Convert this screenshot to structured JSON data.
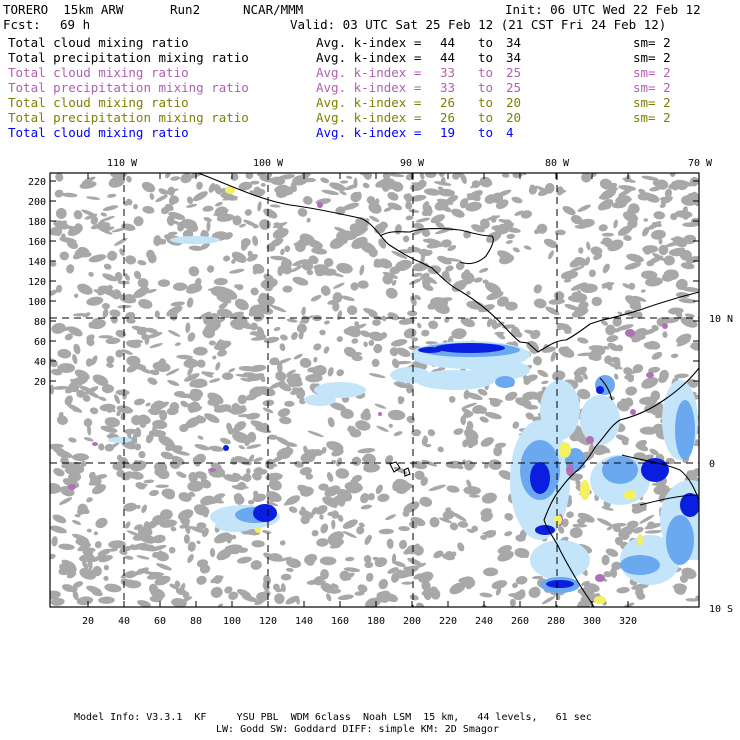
{
  "header": {
    "model": "TORERO  15km ARW",
    "run": "Run2",
    "org": "NCAR/MMM",
    "init": "Init: 06 UTC Wed 22 Feb 12",
    "fcst_label": "Fcst:",
    "fcst_value": "69 h",
    "valid": "Valid: 03 UTC Sat 25 Feb 12 (21 CST Fri 24 Feb 12)"
  },
  "fields": [
    {
      "name": "Total cloud mixing ratio",
      "avg": "Avg. k-index =",
      "from": "44",
      "to_word": "to",
      "to": "34",
      "sm": "sm= 2",
      "color": "#000000"
    },
    {
      "name": "Total precipitation mixing ratio",
      "avg": "Avg. k-index =",
      "from": "44",
      "to_word": "to",
      "to": "34",
      "sm": "sm= 2",
      "color": "#000000"
    },
    {
      "name": "Total cloud mixing ratio",
      "avg": "Avg. k-index =",
      "from": "33",
      "to_word": "to",
      "to": "25",
      "sm": "sm= 2",
      "color": "#b060b0"
    },
    {
      "name": "Total precipitation mixing ratio",
      "avg": "Avg. k-index =",
      "from": "33",
      "to_word": "to",
      "to": "25",
      "sm": "sm= 2",
      "color": "#b060b0"
    },
    {
      "name": "Total cloud mixing ratio",
      "avg": "Avg. k-index =",
      "from": "26",
      "to_word": "to",
      "to": "20",
      "sm": "sm= 2",
      "color": "#808000"
    },
    {
      "name": "Total precipitation mixing ratio",
      "avg": "Avg. k-index =",
      "from": "26",
      "to_word": "to",
      "to": "20",
      "sm": "sm= 2",
      "color": "#808000"
    },
    {
      "name": "Total cloud mixing ratio",
      "avg": "Avg. k-index =",
      "from": "19",
      "to_word": "to",
      "to": "4",
      "sm": "",
      "color": "#0000ff"
    }
  ],
  "map": {
    "lon_labels": [
      "110 W",
      "100 W",
      "90 W",
      "80 W",
      "70 W"
    ],
    "lat_labels": [
      "10 N",
      "0",
      "10 S"
    ],
    "y_ticks": [
      "220",
      "200",
      "180",
      "160",
      "140",
      "120",
      "100",
      "80",
      "60",
      "40",
      "20"
    ],
    "x_ticks": [
      "20",
      "40",
      "60",
      "80",
      "100",
      "120",
      "140",
      "160",
      "180",
      "200",
      "220",
      "240",
      "260",
      "280",
      "300",
      "320"
    ],
    "colors": {
      "cloud_gray": "#a8a8a8",
      "light_blue": "#c4e4fa",
      "mid_blue": "#6aa8f0",
      "deep_blue": "#0a1ee0",
      "purple": "#b070b8",
      "yellow": "#f4f060",
      "coast": "#000000"
    }
  },
  "footer": {
    "line1": "Model Info: V3.3.1  KF     YSU PBL  WDM 6class  Noah LSM  15 km,   44 levels,   61 sec",
    "line2": "LW: Godd SW: Goddard DIFF: simple KM: 2D Smagor"
  }
}
